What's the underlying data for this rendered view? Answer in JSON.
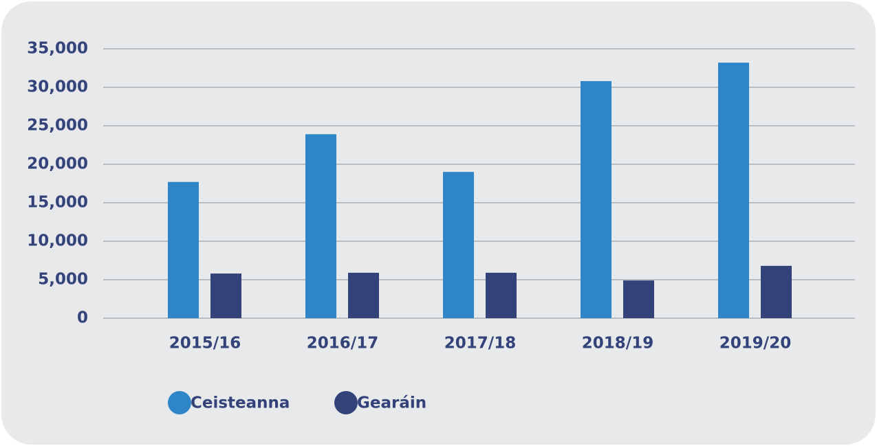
{
  "chart_data": {
    "type": "bar",
    "categories": [
      "2015/16",
      "2016/17",
      "2017/18",
      "2018/19",
      "2019/20"
    ],
    "series": [
      {
        "name": "Ceisteanna",
        "color": "#2e86c8",
        "values": [
          17700,
          23900,
          19000,
          30800,
          33200
        ]
      },
      {
        "name": "Gearáin",
        "color": "#33437a",
        "values": [
          5800,
          5900,
          5900,
          4900,
          6800
        ]
      }
    ],
    "ylim": [
      0,
      35000
    ],
    "yticks": [
      0,
      {
        "value": 5000,
        "label": "5,000"
      },
      {
        "value": 10000,
        "label": "10,000"
      },
      {
        "value": 15000,
        "label": "15,000"
      },
      {
        "value": 20000,
        "label": "20,000"
      },
      {
        "value": 25000,
        "label": "25,000"
      },
      {
        "value": 30000,
        "label": "30,000"
      },
      {
        "value": 35000,
        "label": "35,000"
      }
    ],
    "grid": true,
    "legend": "bottom"
  }
}
